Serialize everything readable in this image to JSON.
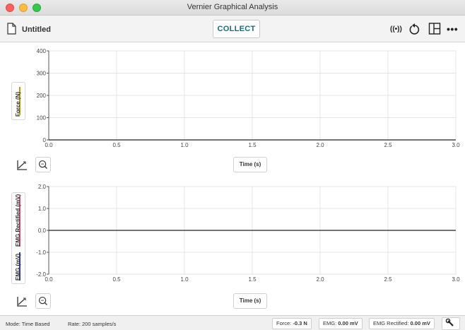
{
  "window": {
    "title": "Vernier Graphical Analysis"
  },
  "toolbar": {
    "document_title": "Untitled",
    "collect_label": "COLLECT",
    "wireless_label": "((•))",
    "more_label": "•••"
  },
  "graph1": {
    "y_label": "Force (N)",
    "x_label": "Time (s)",
    "y_ticks": [
      "400",
      "300",
      "200",
      "100",
      "0"
    ],
    "x_ticks": [
      "0.0",
      "0.5",
      "1.0",
      "1.5",
      "2.0",
      "2.5",
      "3.0"
    ],
    "series_color": "#b5a100"
  },
  "graph2": {
    "y_label_top": "EMG Rectified (mV)",
    "y_label_bottom": "EMG (mV)",
    "x_label": "Time (s)",
    "y_ticks": [
      "2.0",
      "1.0",
      "0.0",
      "-1.0",
      "-2.0"
    ],
    "x_ticks": [
      "0.0",
      "0.5",
      "1.0",
      "1.5",
      "2.0",
      "2.5",
      "3.0"
    ],
    "color_rectified": "#d8547e",
    "color_emg": "#2f3f9c"
  },
  "chart_data": [
    {
      "type": "line",
      "xlabel": "Time (s)",
      "ylabel": "Force (N)",
      "xlim": [
        0,
        3
      ],
      "ylim": [
        0,
        400
      ],
      "series": [
        {
          "name": "Force (N)",
          "values": []
        }
      ]
    },
    {
      "type": "line",
      "xlabel": "Time (s)",
      "ylabel": "EMG (mV)",
      "xlim": [
        0,
        3
      ],
      "ylim": [
        -2,
        2
      ],
      "series": [
        {
          "name": "EMG Rectified (mV)",
          "values": []
        },
        {
          "name": "EMG (mV)",
          "values": []
        }
      ]
    }
  ],
  "status": {
    "mode": "Mode: Time Based",
    "rate": "Rate: 200 samples/s",
    "force_label": "Force: ",
    "force_value": "-0.3 N",
    "emg_label": "EMG: ",
    "emg_value": "0.00 mV",
    "emg_rect_label": "EMG Rectified: ",
    "emg_rect_value": "0.00 mV"
  }
}
